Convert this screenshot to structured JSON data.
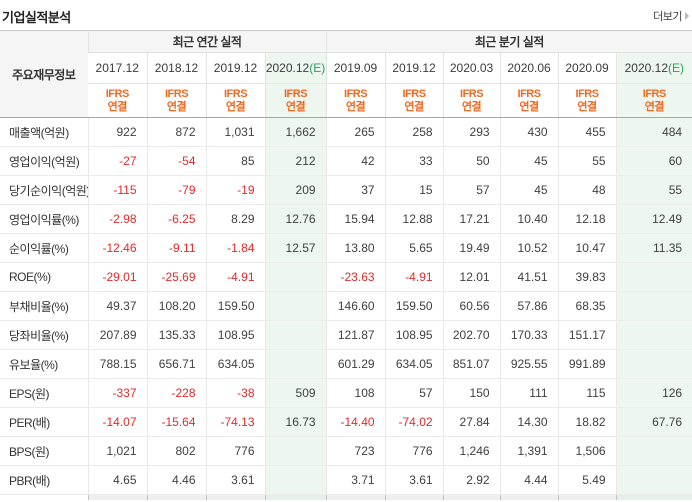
{
  "page": {
    "title": "기업실적분석",
    "more_label": "더보기"
  },
  "colors": {
    "ifrs_orange": "#ee6a23",
    "estimate_green": "#2aa05a",
    "negative_red": "#e32929",
    "estimate_column_bg": "#eef6f0",
    "header_bg": "#f5f5f5"
  },
  "table": {
    "corner_header": "주요재무정보",
    "groups": [
      {
        "label": "최근 연간 실적",
        "span": 4
      },
      {
        "label": "최근 분기 실적",
        "span": 6
      }
    ],
    "columns": [
      {
        "period": "2017.12",
        "suffix": "",
        "estimate": false,
        "standard": "IFRS",
        "scope": "연결"
      },
      {
        "period": "2018.12",
        "suffix": "",
        "estimate": false,
        "standard": "IFRS",
        "scope": "연결"
      },
      {
        "period": "2019.12",
        "suffix": "",
        "estimate": false,
        "standard": "IFRS",
        "scope": "연결"
      },
      {
        "period": "2020.12",
        "suffix": "(E)",
        "estimate": true,
        "standard": "IFRS",
        "scope": "연결"
      },
      {
        "period": "2019.09",
        "suffix": "",
        "estimate": false,
        "standard": "IFRS",
        "scope": "연결"
      },
      {
        "period": "2019.12",
        "suffix": "",
        "estimate": false,
        "standard": "IFRS",
        "scope": "연결"
      },
      {
        "period": "2020.03",
        "suffix": "",
        "estimate": false,
        "standard": "IFRS",
        "scope": "연결"
      },
      {
        "period": "2020.06",
        "suffix": "",
        "estimate": false,
        "standard": "IFRS",
        "scope": "연결"
      },
      {
        "period": "2020.09",
        "suffix": "",
        "estimate": false,
        "standard": "IFRS",
        "scope": "연결"
      },
      {
        "period": "2020.12",
        "suffix": "(E)",
        "estimate": true,
        "standard": "IFRS",
        "scope": "연결"
      }
    ],
    "rows": [
      {
        "label": "매출액(억원)",
        "values": [
          "922",
          "872",
          "1,031",
          "1,662",
          "265",
          "258",
          "293",
          "430",
          "455",
          "484"
        ]
      },
      {
        "label": "영업이익(억원)",
        "values": [
          "-27",
          "-54",
          "85",
          "212",
          "42",
          "33",
          "50",
          "45",
          "55",
          "60"
        ]
      },
      {
        "label": "당기순이익(억원)",
        "values": [
          "-115",
          "-79",
          "-19",
          "209",
          "37",
          "15",
          "57",
          "45",
          "48",
          "55"
        ]
      },
      {
        "label": "영업이익률(%)",
        "values": [
          "-2.98",
          "-6.25",
          "8.29",
          "12.76",
          "15.94",
          "12.88",
          "17.21",
          "10.40",
          "12.18",
          "12.49"
        ]
      },
      {
        "label": "순이익률(%)",
        "values": [
          "-12.46",
          "-9.11",
          "-1.84",
          "12.57",
          "13.80",
          "5.65",
          "19.49",
          "10.52",
          "10.47",
          "11.35"
        ]
      },
      {
        "label": "ROE(%)",
        "values": [
          "-29.01",
          "-25.69",
          "-4.91",
          "",
          "-23.63",
          "-4.91",
          "12.01",
          "41.51",
          "39.83",
          ""
        ]
      },
      {
        "label": "부채비율(%)",
        "values": [
          "49.37",
          "108.20",
          "159.50",
          "",
          "146.60",
          "159.50",
          "60.56",
          "57.86",
          "68.35",
          ""
        ]
      },
      {
        "label": "당좌비율(%)",
        "values": [
          "207.89",
          "135.33",
          "108.95",
          "",
          "121.87",
          "108.95",
          "202.70",
          "170.33",
          "151.17",
          ""
        ]
      },
      {
        "label": "유보율(%)",
        "values": [
          "788.15",
          "656.71",
          "634.05",
          "",
          "601.29",
          "634.05",
          "851.07",
          "925.55",
          "991.89",
          ""
        ]
      },
      {
        "label": "EPS(원)",
        "values": [
          "-337",
          "-228",
          "-38",
          "509",
          "108",
          "57",
          "150",
          "111",
          "115",
          "126"
        ]
      },
      {
        "label": "PER(배)",
        "values": [
          "-14.07",
          "-15.64",
          "-74.13",
          "16.73",
          "-14.40",
          "-74.02",
          "27.84",
          "14.30",
          "18.82",
          "67.76"
        ]
      },
      {
        "label": "BPS(원)",
        "values": [
          "1,021",
          "802",
          "776",
          "",
          "723",
          "776",
          "1,246",
          "1,391",
          "1,506",
          ""
        ]
      },
      {
        "label": "PBR(배)",
        "values": [
          "4.65",
          "4.46",
          "3.61",
          "",
          "3.71",
          "3.61",
          "2.92",
          "4.44",
          "5.49",
          ""
        ]
      }
    ]
  }
}
